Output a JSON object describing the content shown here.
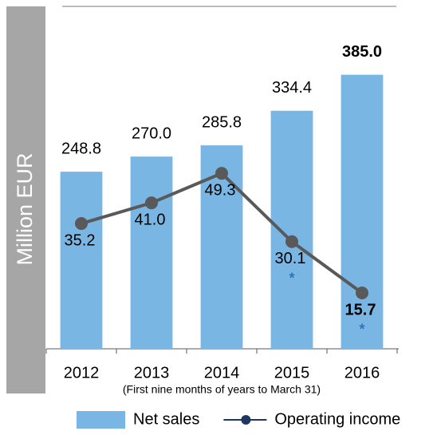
{
  "chart_data": {
    "type": "bar+line",
    "ylabel": "Million EUR",
    "subtitle": "(First nine months of years to March 31)",
    "categories": [
      "2012",
      "2013",
      "2014",
      "2015",
      "2016"
    ],
    "series": [
      {
        "name": "Net sales",
        "type": "bar",
        "color": "#7ab6e4",
        "values": [
          248.8,
          270.0,
          285.8,
          334.4,
          385.0
        ],
        "value_labels": [
          "248.8",
          "270.0",
          "285.8",
          "334.4",
          "385.0"
        ]
      },
      {
        "name": "Operating income",
        "type": "line",
        "axis": "y2",
        "color": "#595959",
        "legend_color": "#1f3564",
        "values": [
          35.2,
          41.0,
          49.3,
          30.1,
          15.7
        ],
        "value_labels": [
          "35.2",
          "41.0",
          "49.3",
          "30.1",
          "15.7"
        ]
      }
    ],
    "annotations": [
      {
        "category": 3,
        "text": "*"
      },
      {
        "category": 4,
        "text": "*"
      }
    ],
    "ylim": [
      0,
      490
    ],
    "y2lim": [
      0,
      98
    ]
  }
}
